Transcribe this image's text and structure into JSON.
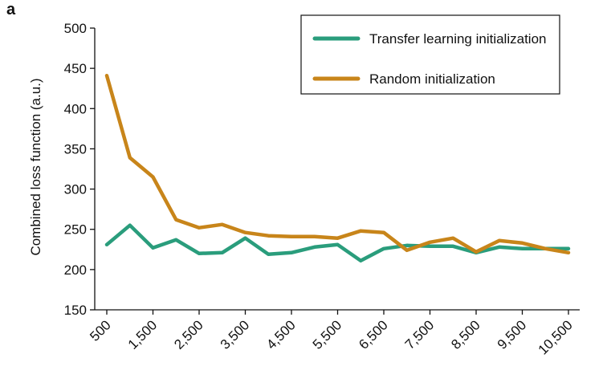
{
  "panel_label": "a",
  "chart_data": {
    "type": "line",
    "ylabel": "Combined loss function (a.u.)",
    "xlabel": "",
    "ylim": [
      150,
      500
    ],
    "yticks": [
      150,
      200,
      250,
      300,
      350,
      400,
      450,
      500
    ],
    "x": [
      500,
      1000,
      1500,
      2000,
      2500,
      3000,
      3500,
      4000,
      4500,
      5000,
      5500,
      6000,
      6500,
      7000,
      7500,
      8000,
      8500,
      9000,
      9500,
      10000,
      10500
    ],
    "xtick_values": [
      500,
      1500,
      2500,
      3500,
      4500,
      5500,
      6500,
      7500,
      8500,
      9500,
      10500
    ],
    "xtick_labels": [
      "500",
      "1,500",
      "2,500",
      "3,500",
      "4,500",
      "5,500",
      "6,500",
      "7,500",
      "8,500",
      "9,500",
      "10,500"
    ],
    "legend_position": "top-right",
    "grid": false,
    "series": [
      {
        "name": "Transfer learning initialization",
        "color": "#2a9d7c",
        "values": [
          231,
          255,
          227,
          237,
          220,
          221,
          239,
          219,
          221,
          228,
          231,
          211,
          226,
          230,
          229,
          229,
          221,
          228,
          226,
          226,
          226
        ]
      },
      {
        "name": "Random initialization",
        "color": "#c8851a",
        "values": [
          441,
          339,
          315,
          262,
          252,
          256,
          246,
          242,
          241,
          241,
          239,
          248,
          246,
          224,
          234,
          239,
          222,
          236,
          233,
          226,
          221
        ]
      }
    ]
  }
}
